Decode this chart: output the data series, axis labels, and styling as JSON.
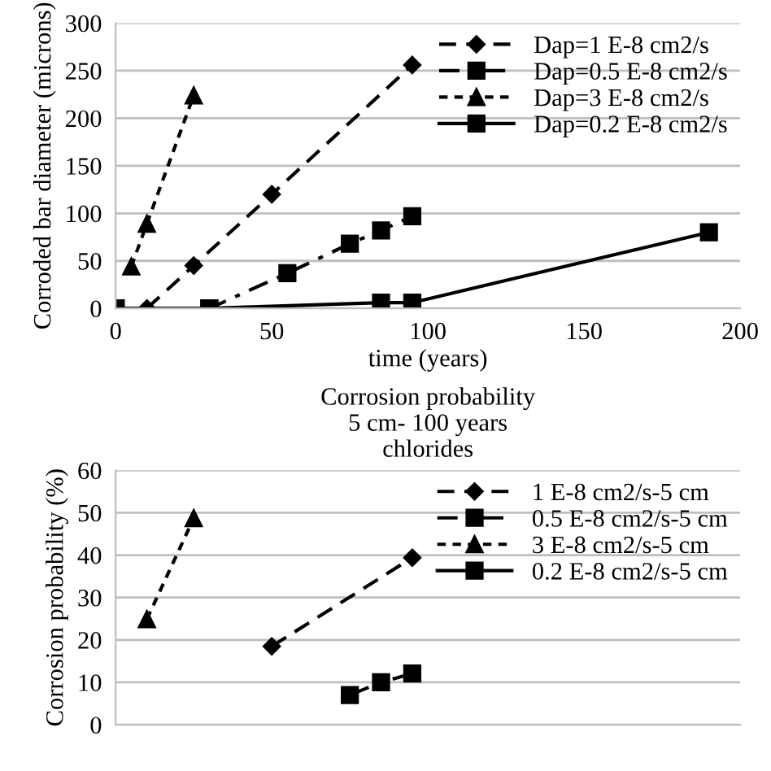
{
  "chart_data": [
    {
      "type": "line",
      "xlabel": "time (years)",
      "ylabel": "Corroded bar diameter (microns)",
      "xlim": [
        0,
        200
      ],
      "xticks": [
        0,
        50,
        100,
        150,
        200
      ],
      "ylim": [
        0,
        300
      ],
      "yticks": [
        0,
        50,
        100,
        150,
        200,
        250,
        300
      ],
      "grid": "y",
      "legend": "top right",
      "series": [
        {
          "name": "Dap=1 E-8 cm2/s",
          "color": "#000000",
          "marker": "diamond",
          "line_style": "dashed",
          "x": [
            10,
            25,
            50,
            95
          ],
          "values": [
            0,
            45,
            120,
            256
          ]
        },
        {
          "name": "Dap=0.5 E-8 cm2/s",
          "color": "#000000",
          "marker": "square",
          "line_style": "dashdot",
          "x": [
            0,
            30,
            55,
            75,
            85,
            95
          ],
          "values": [
            0,
            0,
            37,
            68,
            82,
            97
          ]
        },
        {
          "name": "Dap=3 E-8 cm2/s",
          "color": "#000000",
          "marker": "triangle",
          "line_style": "dotted",
          "x": [
            5,
            10,
            25
          ],
          "values": [
            44,
            89,
            224
          ]
        },
        {
          "name": "Dap=0.2 E-8 cm2/s",
          "color": "#000000",
          "marker": "square",
          "line_style": "solid",
          "x": [
            0,
            30,
            85,
            95,
            190
          ],
          "values": [
            0,
            0,
            6,
            6,
            80
          ]
        }
      ]
    },
    {
      "type": "line",
      "title": "Corrosion probability\n5 cm- 100 years\nchlorides",
      "ylabel": "Corrosion probability (%)",
      "xlim": [
        0,
        200
      ],
      "ylim": [
        0,
        60
      ],
      "yticks": [
        0,
        10,
        20,
        30,
        40,
        50,
        60
      ],
      "tick_labels": "y",
      "grid": "y",
      "legend": "top right",
      "series": [
        {
          "name": "1 E-8 cm2/s-5 cm",
          "color": "#000000",
          "marker": "diamond",
          "line_style": "dashed",
          "x": [
            50,
            95
          ],
          "values": [
            18.5,
            39.4
          ]
        },
        {
          "name": "0.5 E-8 cm2/s-5 cm",
          "color": "#000000",
          "marker": "square",
          "line_style": "dashdot",
          "x": [
            75,
            85,
            95
          ],
          "values": [
            7,
            10,
            12.1
          ]
        },
        {
          "name": "3 E-8 cm2/s-5 cm",
          "color": "#000000",
          "marker": "triangle",
          "line_style": "dotted",
          "x": [
            10,
            25
          ],
          "values": [
            24.9,
            48.7
          ]
        },
        {
          "name": "0.2 E-8 cm2/s-5 cm",
          "color": "#000000",
          "marker": "square",
          "line_style": "solid"
        }
      ]
    }
  ]
}
